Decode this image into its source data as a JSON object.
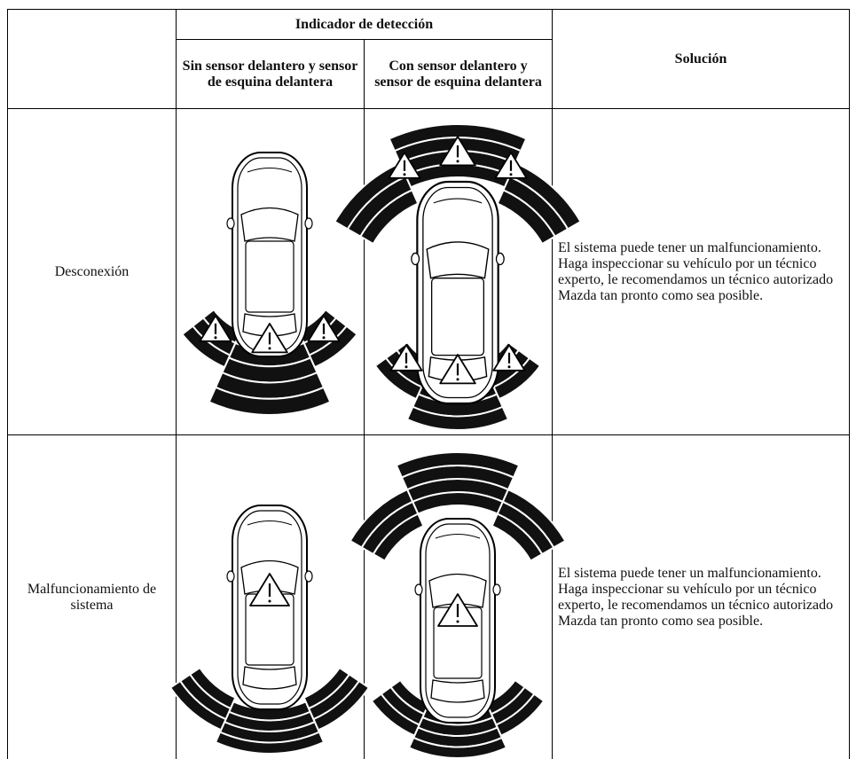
{
  "table": {
    "header": {
      "group": "Indicador de detección",
      "columns": [
        "Sin sensor delantero y sensor de esquina delantera",
        "Con sensor delantero y sensor de esquina delantera"
      ],
      "solution": "Solución"
    },
    "rows": [
      {
        "label": "Desconexión",
        "solution": "El sistema puede tener un malfuncionamiento. Haga inspeccionar su vehículo por un técnico experto, le recomendamos un técnico autorizado Mazda tan pronto como sea posible."
      },
      {
        "label": "Malfuncionamiento de sistema",
        "solution": "El sistema puede tener un malfuncionamiento. Haga inspeccionar su vehículo por un técnico experto, le recomendamos un técnico autorizado Mazda tan pronto como sea posible."
      }
    ]
  }
}
